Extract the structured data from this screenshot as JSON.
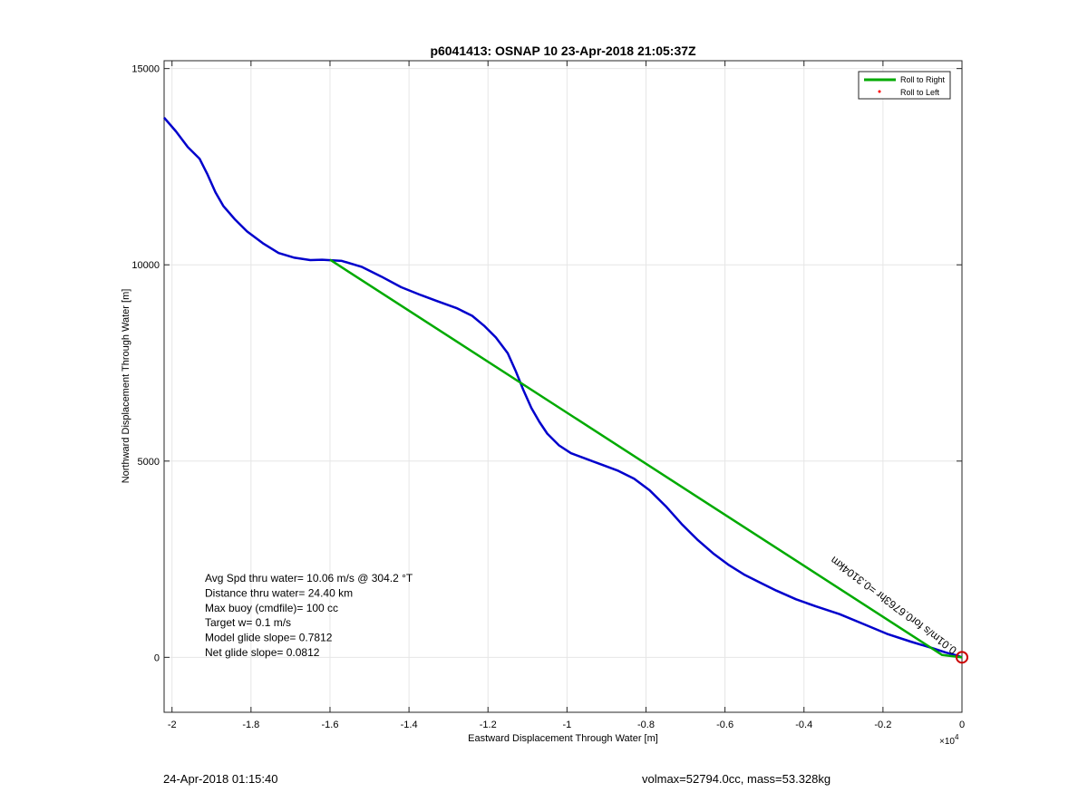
{
  "chart_data": {
    "type": "line",
    "title": "p6041413: OSNAP 10 23-Apr-2018 21:05:37Z",
    "xlabel": "Eastward Displacement Through Water [m]",
    "ylabel": "Northward Displacement Through Water [m]",
    "x_exponent_label": "×10",
    "x_exponent_power": "4",
    "xlim": [
      -2.02,
      0.0
    ],
    "ylim": [
      -1400,
      15200
    ],
    "x_scale_note": "x values in units of 1e4 m",
    "xticks": [
      -2,
      -1.8,
      -1.6,
      -1.4,
      -1.2,
      -1,
      -0.8,
      -0.6,
      -0.4,
      -0.2,
      0
    ],
    "xtick_labels": [
      "-2",
      "-1.8",
      "-1.6",
      "-1.4",
      "-1.2",
      "-1",
      "-0.8",
      "-0.6",
      "-0.4",
      "-0.2",
      "0"
    ],
    "yticks": [
      0,
      5000,
      10000,
      15000
    ],
    "ytick_labels": [
      "0",
      "5000",
      "10000",
      "15000"
    ],
    "grid": true,
    "legend_position": "top-right",
    "legend": [
      {
        "name": "Roll to Right",
        "color": "#00aa00",
        "marker": "line"
      },
      {
        "name": "Roll to Left",
        "color": "#ff0000",
        "marker": "dot"
      }
    ],
    "series": [
      {
        "name": "track",
        "color": "#0000cc",
        "x": [
          -2.02,
          -1.99,
          -1.96,
          -1.93,
          -1.91,
          -1.89,
          -1.87,
          -1.84,
          -1.81,
          -1.77,
          -1.73,
          -1.69,
          -1.65,
          -1.62,
          -1.57,
          -1.52,
          -1.47,
          -1.42,
          -1.37,
          -1.33,
          -1.28,
          -1.24,
          -1.21,
          -1.18,
          -1.15,
          -1.13,
          -1.11,
          -1.09,
          -1.07,
          -1.05,
          -1.02,
          -0.99,
          -0.95,
          -0.91,
          -0.87,
          -0.83,
          -0.79,
          -0.75,
          -0.71,
          -0.67,
          -0.63,
          -0.59,
          -0.55,
          -0.51,
          -0.47,
          -0.42,
          -0.37,
          -0.31,
          -0.25,
          -0.19,
          -0.13,
          -0.08,
          -0.04,
          -0.01,
          0.0
        ],
        "y": [
          13750,
          13400,
          13000,
          12700,
          12300,
          11850,
          11500,
          11150,
          10850,
          10550,
          10300,
          10180,
          10120,
          10130,
          10100,
          9950,
          9700,
          9430,
          9230,
          9080,
          8900,
          8700,
          8450,
          8150,
          7750,
          7300,
          6800,
          6350,
          6000,
          5700,
          5400,
          5200,
          5050,
          4900,
          4750,
          4550,
          4250,
          3850,
          3400,
          3000,
          2650,
          2350,
          2100,
          1900,
          1700,
          1480,
          1300,
          1100,
          850,
          600,
          400,
          250,
          120,
          40,
          0
        ]
      },
      {
        "name": "Roll to Right",
        "color": "#00aa00",
        "x": [
          -1.6,
          -0.05,
          0.0
        ],
        "y": [
          10130,
          60,
          0
        ]
      }
    ],
    "annotations": [
      {
        "text": "Avg Spd thru water= 10.06 m/s @ 304.2 °T"
      },
      {
        "text": "Distance thru water= 24.40 km"
      },
      {
        "text": "Max buoy (cmdfile)= 100 cc"
      },
      {
        "text": "Target w= 0.1 m/s"
      },
      {
        "text": "Model glide slope= 0.7812"
      },
      {
        "text": "Net glide slope= 0.0812"
      }
    ],
    "rotated_annotation": "0.01m/s for0.6763hr =0.3104km",
    "end_marker": {
      "x": 0.0,
      "y": 0,
      "color": "#cc0000"
    }
  },
  "footer": {
    "left": "24-Apr-2018 01:15:40",
    "right": "volmax=52794.0cc, mass=53.328kg"
  }
}
